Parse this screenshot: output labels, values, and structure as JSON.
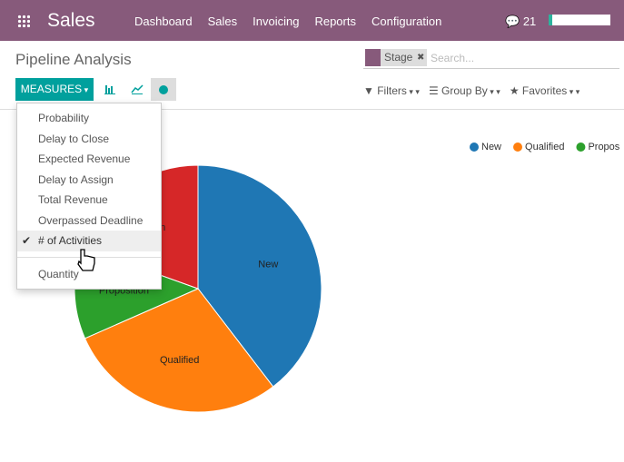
{
  "nav": {
    "app": "Sales",
    "menu": [
      "Dashboard",
      "Sales",
      "Invoicing",
      "Reports",
      "Configuration"
    ],
    "messages": "21"
  },
  "breadcrumb": "Pipeline Analysis",
  "search": {
    "facet": "Stage",
    "placeholder": "Search..."
  },
  "measures_button": "MEASURES",
  "options": [
    "Filters",
    "Group By",
    "Favorites"
  ],
  "measures": {
    "items": [
      "Probability",
      "Delay to Close",
      "Expected Revenue",
      "Delay to Assign",
      "Total Revenue",
      "Overpassed Deadline",
      "# of Activities",
      "Quantity"
    ],
    "selected": 6
  },
  "chart_data": {
    "type": "pie",
    "categories": [
      "New",
      "Qualified",
      "Proposition",
      "Won"
    ],
    "values": [
      39.6,
      28.8,
      12.1,
      19.5
    ],
    "colors": [
      "#1f77b4",
      "#ff7f0e",
      "#2ca02c",
      "#d62728"
    ],
    "legend": "top-right"
  }
}
